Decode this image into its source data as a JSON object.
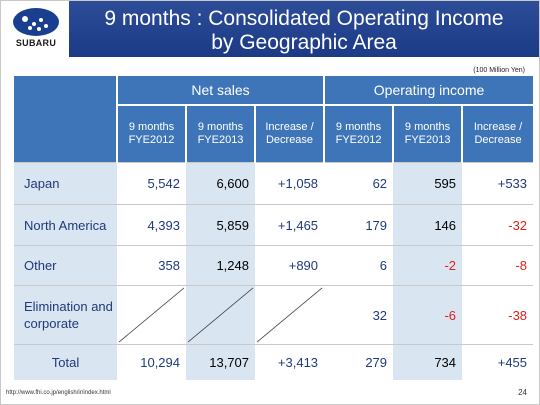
{
  "header": {
    "logo_text": "SUBARU",
    "title_line1": "9 months : Consolidated Operating Income",
    "title_line2": "by Geographic Area",
    "brand_color": "#1c3a86"
  },
  "unit": "(100 Million Yen)",
  "table": {
    "groups": [
      "Net sales",
      "Operating income"
    ],
    "subheaders": [
      [
        "9 months",
        "FYE2012"
      ],
      [
        "9 months",
        "FYE2013"
      ],
      [
        "Increase /",
        "Decrease"
      ],
      [
        "9 months",
        "FYE2012"
      ],
      [
        "9 months",
        "FYE2013"
      ],
      [
        "Increase /",
        "Decrease"
      ]
    ],
    "rows": [
      {
        "label": "Japan",
        "cells": [
          "5,542",
          "6,600",
          "+1,058",
          "62",
          "595",
          "+533"
        ]
      },
      {
        "label": "North America",
        "cells": [
          "4,393",
          "5,859",
          "+1,465",
          "179",
          "146",
          "-32"
        ]
      },
      {
        "label": "Other",
        "cells": [
          "358",
          "1,248",
          "+890",
          "6",
          "-2",
          "-8"
        ]
      },
      {
        "label": "Elimination and corporate",
        "cells": [
          "",
          "",
          "",
          "32",
          "-6",
          "-38"
        ]
      },
      {
        "label": "Total",
        "cells": [
          "10,294",
          "13,707",
          "+3,413",
          "279",
          "734",
          "+455"
        ]
      }
    ]
  },
  "footer": {
    "url": "http://www.fhi.co.jp/english/ir/index.html",
    "page": "24"
  }
}
